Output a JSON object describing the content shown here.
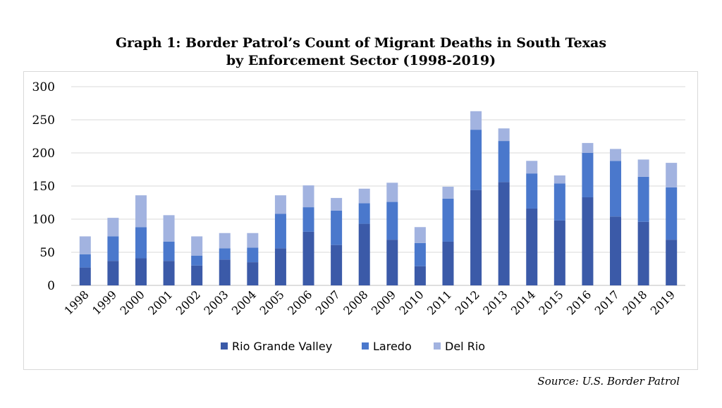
{
  "chart_data": {
    "type": "bar",
    "stacked": true,
    "title": "Graph 1: Border Patrol’s Count of Migrant Deaths in South Texas",
    "subtitle": "by Enforcement Sector (1998-2019)",
    "categories": [
      "1998",
      "1999",
      "2000",
      "2001",
      "2002",
      "2003",
      "2004",
      "2005",
      "2006",
      "2007",
      "2008",
      "2009",
      "2010",
      "2011",
      "2012",
      "2013",
      "2014",
      "2015",
      "2016",
      "2017",
      "2018",
      "2019"
    ],
    "series": [
      {
        "name": "Rio Grande Valley",
        "color": "#3b5aa8",
        "values": [
          27,
          37,
          41,
          37,
          30,
          39,
          35,
          56,
          81,
          61,
          93,
          69,
          29,
          66,
          144,
          156,
          116,
          98,
          133,
          104,
          96,
          69
        ]
      },
      {
        "name": "Laredo",
        "color": "#4a78cc",
        "values": [
          20,
          37,
          47,
          29,
          15,
          17,
          22,
          52,
          37,
          52,
          31,
          57,
          35,
          65,
          91,
          62,
          53,
          56,
          67,
          84,
          68,
          79
        ]
      },
      {
        "name": "Del Rio",
        "color": "#a2b3e0",
        "values": [
          27,
          28,
          48,
          40,
          29,
          23,
          22,
          28,
          33,
          19,
          22,
          29,
          24,
          18,
          28,
          19,
          19,
          12,
          15,
          18,
          26,
          37
        ]
      }
    ],
    "yticks": [
      0,
      50,
      100,
      150,
      200,
      250,
      300
    ],
    "ylim": [
      0,
      300
    ],
    "legend": "bottom",
    "grid": true
  },
  "footer": {
    "source": "Source: U.S. Border Patrol"
  }
}
